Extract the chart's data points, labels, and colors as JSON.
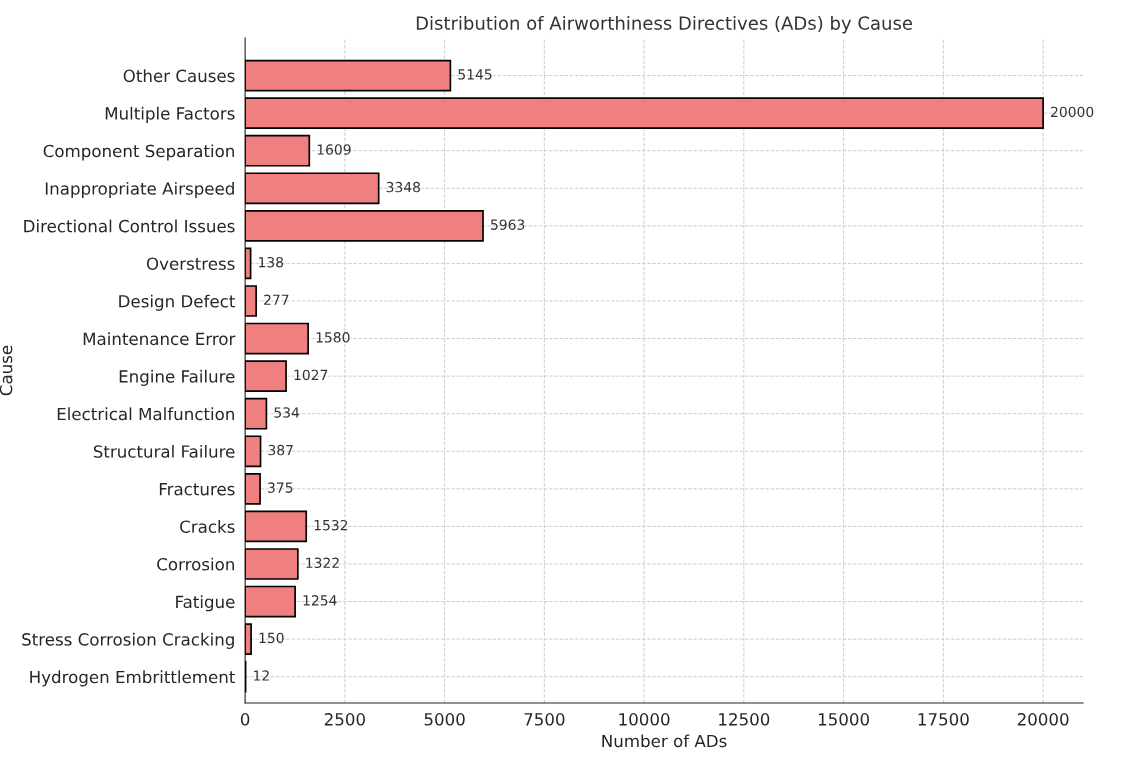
{
  "chart_data": {
    "type": "bar",
    "orientation": "horizontal",
    "title": "Distribution of Airworthiness Directives (ADs) by Cause",
    "xlabel": "Number of ADs",
    "ylabel": "Cause",
    "categories": [
      "Other Causes",
      "Multiple Factors",
      "Component Separation",
      "Inappropriate Airspeed",
      "Directional Control Issues",
      "Overstress",
      "Design Defect",
      "Maintenance Error",
      "Engine Failure",
      "Electrical Malfunction",
      "Structural Failure",
      "Fractures",
      "Cracks",
      "Corrosion",
      "Fatigue",
      "Stress Corrosion Cracking",
      "Hydrogen Embrittlement"
    ],
    "values": [
      5145,
      20000,
      1609,
      3348,
      5963,
      138,
      277,
      1580,
      1027,
      534,
      387,
      375,
      1532,
      1322,
      1254,
      150,
      12
    ],
    "color": "#f08080",
    "xlim": [
      0,
      21000
    ],
    "xticks": [
      0,
      2500,
      5000,
      7500,
      10000,
      12500,
      15000,
      17500,
      20000
    ],
    "grid": true,
    "data_labels": true
  }
}
